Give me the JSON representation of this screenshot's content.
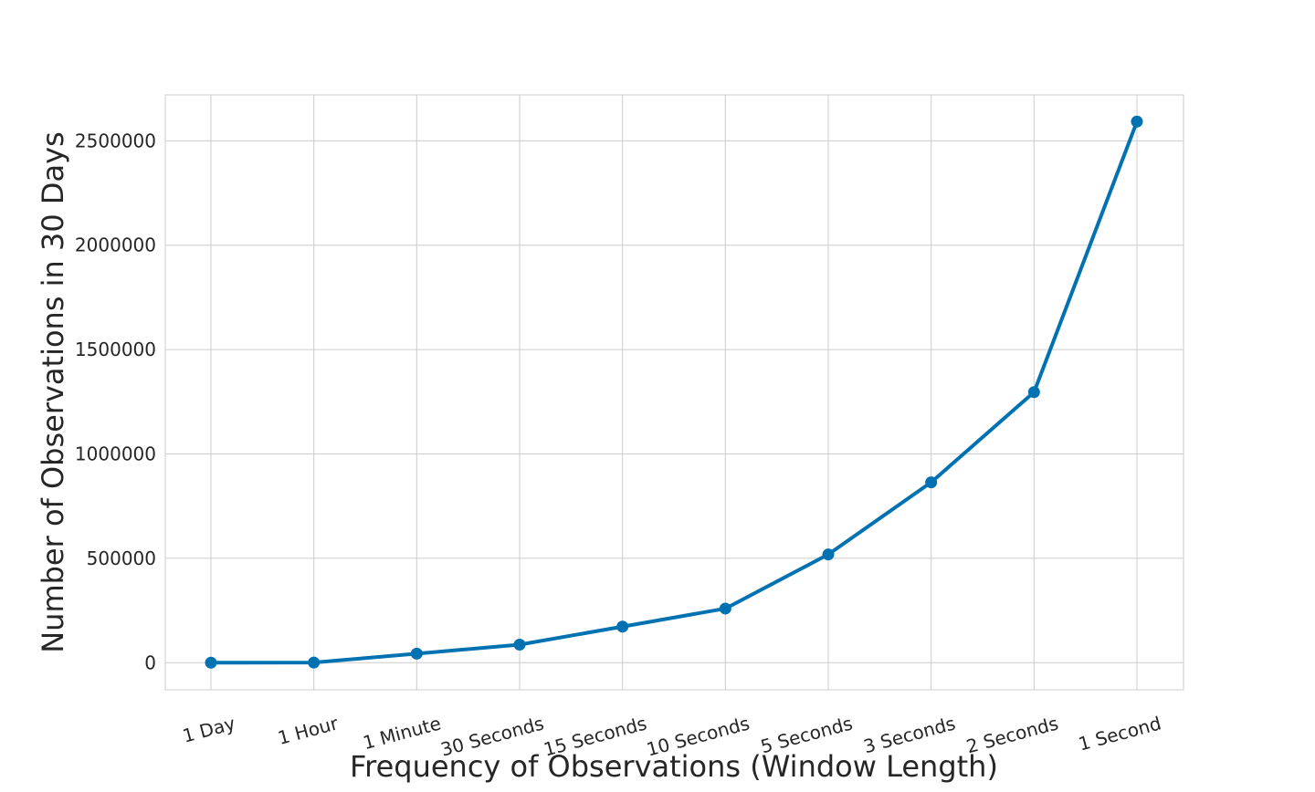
{
  "chart_data": {
    "type": "line",
    "title": "",
    "xlabel": "Frequency of Observations (Window Length)",
    "ylabel": "Number of Observations in 30 Days",
    "categories": [
      "1 Day",
      "1 Hour",
      "1 Minute",
      "30 Seconds",
      "15 Seconds",
      "10 Seconds",
      "5 Seconds",
      "3 Seconds",
      "2 Seconds",
      "1 Second"
    ],
    "values": [
      30,
      720,
      43200,
      86400,
      172800,
      259200,
      518400,
      864000,
      1296000,
      2592000
    ],
    "ylim": [
      -130000,
      2720000
    ],
    "yticks": [
      0,
      500000,
      1000000,
      1500000,
      2000000,
      2500000
    ],
    "ytick_labels": [
      "0",
      "500000",
      "1000000",
      "1500000",
      "2000000",
      "2500000"
    ],
    "grid": true,
    "legend": "none",
    "line_color": "#0072b2"
  }
}
